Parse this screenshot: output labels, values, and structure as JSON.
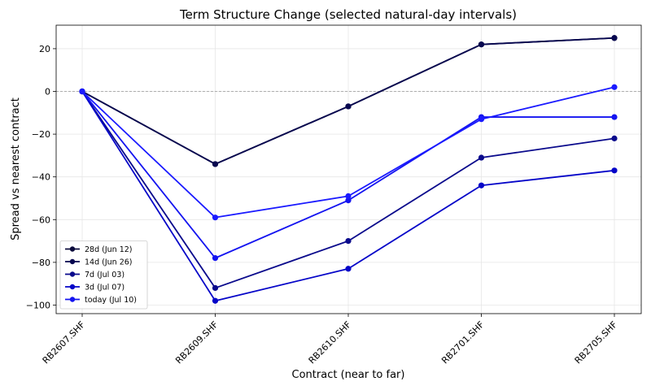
{
  "chart_data": {
    "type": "line",
    "title": "Term Structure Change (selected natural-day intervals)",
    "xlabel": "Contract (near to far)",
    "ylabel": "Spread vs nearest contract",
    "categories": [
      "RB2607.SHF",
      "RB2609.SHF",
      "RB2610.SHF",
      "RB2701.SHF",
      "RB2705.SHF"
    ],
    "ylim": [
      -104,
      31
    ],
    "yticks": [
      20,
      0,
      -20,
      -40,
      -60,
      -80,
      -100
    ],
    "grid": true,
    "zero_reference_line": true,
    "legend_position": "lower-left",
    "series": [
      {
        "name": "28d (Jun 12)",
        "color": "#0b0b3b",
        "values": [
          0,
          -34,
          -7,
          22,
          25
        ]
      },
      {
        "name": "14d (Jun 26)",
        "color": "#07074f",
        "values": [
          0,
          -34,
          -7,
          22,
          25
        ]
      },
      {
        "name": "7d (Jul 03)",
        "color": "#0a0a8c",
        "values": [
          0,
          -92,
          -70,
          -31,
          -22
        ]
      },
      {
        "name": "3d (Jul 07)",
        "color": "#0505c8",
        "values": [
          0,
          -98,
          -83,
          -44,
          -37
        ]
      },
      {
        "name": "today (Jul 10)",
        "color": "#1414f0",
        "values": [
          0,
          -78,
          -51,
          -12,
          -12
        ]
      },
      {
        "name": "",
        "color": "#1a1aff",
        "values": [
          0,
          -59,
          -49,
          -13,
          2
        ]
      }
    ]
  }
}
